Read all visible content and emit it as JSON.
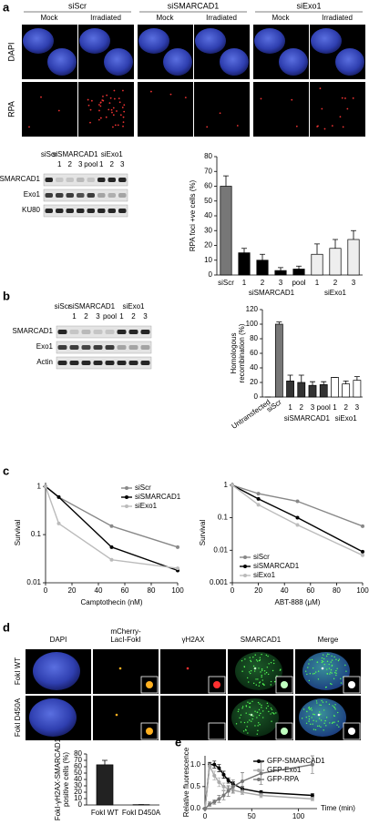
{
  "figure": {
    "panel_labels": [
      "a",
      "b",
      "c",
      "d",
      "e"
    ],
    "a_images": {
      "groups": [
        "siScr",
        "siSMARCAD1",
        "siExo1"
      ],
      "conditions": [
        "Mock",
        "Irradiated"
      ],
      "rows": [
        "DAPI",
        "RPA"
      ]
    },
    "a_blot": {
      "top": [
        "siScr",
        "siSMARCAD1",
        "siExo1"
      ],
      "lanes": [
        "1",
        "2",
        "3",
        "pool",
        "1",
        "2",
        "3"
      ],
      "rows": [
        "SMARCAD1",
        "Exo1",
        "KU80"
      ]
    },
    "b_blot": {
      "top": [
        "siScr",
        "siSMARCAD1",
        "siExo1"
      ],
      "lanes": [
        "1",
        "2",
        "3",
        "pool",
        "1",
        "2",
        "3"
      ],
      "rows": [
        "SMARCAD1",
        "Exo1",
        "Actin"
      ]
    },
    "d_images": {
      "columns": [
        [
          "DAPI"
        ],
        [
          "mCherry-",
          "LacI-FokI"
        ],
        [
          "γH2AX"
        ],
        [
          "SMARCAD1"
        ],
        [
          "Merge"
        ]
      ],
      "rows": [
        "FokI WT",
        "FokI D450A"
      ]
    }
  },
  "chart_data": [
    {
      "type": "bar",
      "y_label": [
        "RPA foci +ve cells (%)"
      ],
      "categories": [
        "siScr",
        "1",
        "2",
        "3",
        "pool",
        "1",
        "2",
        "3"
      ],
      "group_labels": [
        "siSMARCAD1",
        "siExo1"
      ],
      "values": [
        60,
        15,
        10,
        3,
        4,
        14,
        18,
        24
      ],
      "errors": [
        7,
        3,
        4,
        2,
        2,
        7,
        6,
        6
      ],
      "colors": [
        "#777777",
        "#000000",
        "#000000",
        "#000000",
        "#000000",
        "#eeeeee",
        "#eeeeee",
        "#eeeeee"
      ],
      "ylim": [
        0,
        80
      ],
      "yticks": [
        0,
        10,
        20,
        30,
        40,
        50,
        60,
        70,
        80
      ]
    },
    {
      "type": "bar",
      "y_label": [
        "Homologous",
        "recombination (%)"
      ],
      "categories": [
        "Untransfected",
        "siScr",
        "1",
        "2",
        "3",
        "pool",
        "1",
        "2",
        "3"
      ],
      "group_labels": [
        "siSMARCAD1",
        "siExo1"
      ],
      "values": [
        0,
        100,
        22,
        20,
        16,
        17,
        27,
        18,
        23
      ],
      "errors": [
        0,
        3,
        8,
        10,
        5,
        4,
        0,
        4,
        5
      ],
      "colors": [
        "#ffffff",
        "#777777",
        "#333333",
        "#333333",
        "#333333",
        "#333333",
        "#ffffff",
        "#ffffff",
        "#ffffff"
      ],
      "ylim": [
        0,
        120
      ],
      "yticks": [
        0,
        20,
        40,
        60,
        80,
        100,
        120
      ]
    },
    {
      "type": "line",
      "x_label": "Camptothecin (nM)",
      "y_label": [
        "Survival"
      ],
      "log_y": true,
      "legend": "upper right",
      "x": [
        0,
        10,
        50,
        100
      ],
      "xlim": [
        0,
        100
      ],
      "xticks": [
        0,
        20,
        40,
        60,
        80,
        100
      ],
      "ylim": [
        0.01,
        1.2
      ],
      "yticks": [
        0.01,
        0.1,
        1
      ],
      "series": [
        {
          "name": "siScr",
          "color": "#888888",
          "values": [
            1,
            0.6,
            0.15,
            0.055
          ]
        },
        {
          "name": "siSMARCAD1",
          "color": "#000000",
          "values": [
            1,
            0.6,
            0.055,
            0.018
          ]
        },
        {
          "name": "siExo1",
          "color": "#bbbbbb",
          "values": [
            1,
            0.17,
            0.03,
            0.02
          ]
        }
      ]
    },
    {
      "type": "line",
      "x_label": "ABT-888 (μM)",
      "y_label": [
        "Survival"
      ],
      "log_y": true,
      "legend": "lower left",
      "x": [
        0,
        20,
        50,
        100
      ],
      "xlim": [
        0,
        100
      ],
      "xticks": [
        0,
        20,
        40,
        60,
        80,
        100
      ],
      "ylim": [
        0.001,
        1.2
      ],
      "yticks": [
        0.001,
        0.01,
        0.1,
        1
      ],
      "series": [
        {
          "name": "siScr",
          "color": "#888888",
          "values": [
            1,
            0.55,
            0.32,
            0.055
          ]
        },
        {
          "name": "siSMARCAD1",
          "color": "#000000",
          "values": [
            1,
            0.38,
            0.1,
            0.009
          ]
        },
        {
          "name": "siExo1",
          "color": "#bbbbbb",
          "values": [
            1,
            0.25,
            0.06,
            0.007
          ]
        }
      ]
    },
    {
      "type": "bar",
      "y_label": [
        "FokI-γH2AX-SMARCAD1",
        "positive cells (%)"
      ],
      "categories": [
        "FokI WT",
        "FokI D450A"
      ],
      "values": [
        63,
        0.5
      ],
      "errors": [
        7,
        0
      ],
      "colors": [
        "#222222",
        "#222222"
      ],
      "ylim": [
        0,
        80
      ],
      "yticks": [
        0,
        10,
        20,
        30,
        40,
        50,
        60,
        70,
        80
      ]
    },
    {
      "type": "line",
      "x_label": "Time (min)",
      "y_label": [
        "Relative fluorescence"
      ],
      "legend": "upper right",
      "x": [
        0,
        5,
        10,
        15,
        20,
        25,
        30,
        40,
        60,
        115
      ],
      "xlim": [
        0,
        120
      ],
      "xticks": [
        0,
        50,
        100
      ],
      "ylim": [
        0,
        1.2
      ],
      "yticks": [
        {
          "value": 0,
          "label": "0.0"
        },
        0.5,
        {
          "value": 1,
          "label": "1.0"
        }
      ],
      "series": [
        {
          "name": "GFP-SMARCAD1",
          "color": "#000000",
          "values": [
            0,
            1,
            1,
            0.92,
            0.77,
            0.64,
            0.56,
            0.45,
            0.37,
            0.3
          ],
          "errors": [
            0,
            0.05,
            0.08,
            0.08,
            0.08,
            0.06,
            0.05,
            0.05,
            0.04,
            0.04
          ]
        },
        {
          "name": "GFP-Exo1",
          "color": "#aaaaaa",
          "values": [
            0,
            0.97,
            0.75,
            0.6,
            0.5,
            0.45,
            0.42,
            0.37,
            0.3,
            0.22
          ],
          "errors": [
            0,
            0.06,
            0.1,
            0.1,
            0.08,
            0.06,
            0.05,
            0.05,
            0.05,
            0.04
          ]
        },
        {
          "name": "GFP-RPA",
          "color": "#777777",
          "values": [
            0,
            0.1,
            0.15,
            0.22,
            0.3,
            0.4,
            0.5,
            0.62,
            0.8,
            1.0
          ],
          "errors": [
            0,
            0.05,
            0.05,
            0.08,
            0.1,
            0.12,
            0.15,
            0.2,
            0.25,
            0.2
          ]
        }
      ]
    }
  ]
}
